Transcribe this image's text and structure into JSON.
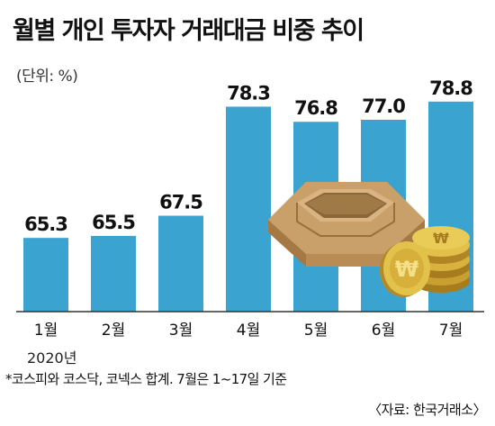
{
  "title": "월별 개인 투자자 거래대금 비중 추이",
  "unit": "(단위: %)",
  "year_label": "2020년",
  "footnote": "*코스피와 코스닥, 코넥스 합계. 7월은 1~17일 기준",
  "source": "〈자료: 한국거래소〉",
  "colors": {
    "bar": "#3ba3cf",
    "baseline": "#333333",
    "wood": "#c9a06a",
    "coin": "#d9b23a"
  },
  "icons": [
    "wooden-box-icon",
    "won-coin-stack-icon"
  ],
  "chart_data": {
    "type": "bar",
    "categories": [
      "1월",
      "2월",
      "3월",
      "4월",
      "5월",
      "6월",
      "7월"
    ],
    "values": [
      65.3,
      65.5,
      67.5,
      78.3,
      76.8,
      77.0,
      78.8
    ],
    "value_labels": [
      "65.3",
      "65.5",
      "67.5",
      "78.3",
      "76.8",
      "77.0",
      "78.8"
    ],
    "title": "월별 개인 투자자 거래대금 비중 추이",
    "xlabel": "",
    "ylabel": "",
    "ylim": [
      58,
      80.3
    ],
    "grid": false,
    "legend": "none"
  }
}
